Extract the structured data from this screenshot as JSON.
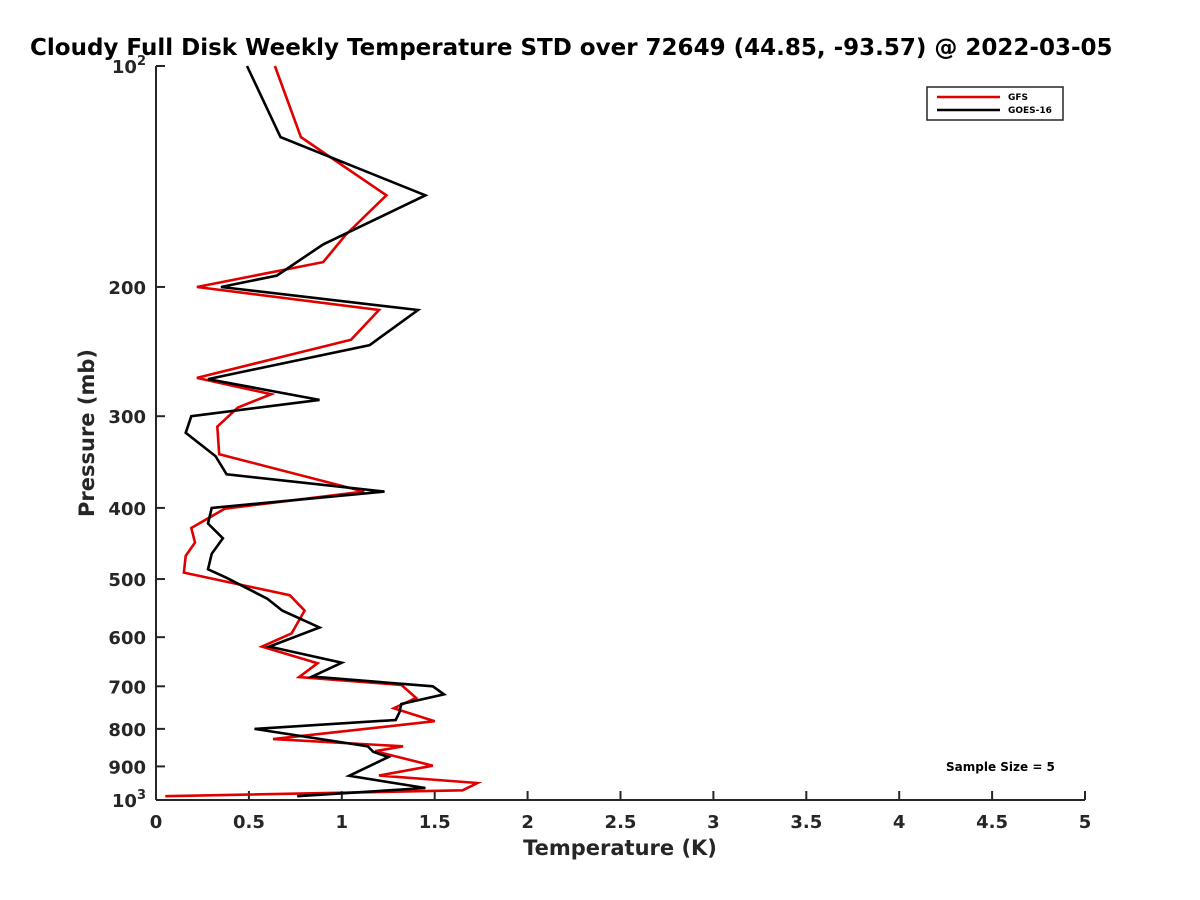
{
  "chart_data": {
    "type": "line",
    "title": "Cloudy Full Disk Weekly Temperature STD over 72649 (44.85, -93.57) @ 2022-03-05",
    "xlabel": "Temperature (K)",
    "ylabel": "Pressure (mb)",
    "xlim": [
      0,
      5
    ],
    "ylim": [
      100,
      1000
    ],
    "y_scale": "log",
    "y_reversed": true,
    "grid": false,
    "x_ticks": [
      "0",
      "0.5",
      "1",
      "1.5",
      "2",
      "2.5",
      "3",
      "3.5",
      "4",
      "4.5",
      "5"
    ],
    "y_ticks": [
      {
        "value": 100,
        "base": "10",
        "exp": "2"
      },
      {
        "value": 200,
        "label": "200"
      },
      {
        "value": 300,
        "label": "300"
      },
      {
        "value": 400,
        "label": "400"
      },
      {
        "value": 500,
        "label": "500"
      },
      {
        "value": 600,
        "label": "600"
      },
      {
        "value": 700,
        "label": "700"
      },
      {
        "value": 800,
        "label": "800"
      },
      {
        "value": 900,
        "label": "900"
      },
      {
        "value": 1000,
        "base": "10",
        "exp": "3"
      }
    ],
    "legend": {
      "position": "top-right",
      "entries": [
        "GFS",
        "GOES-16"
      ]
    },
    "annotation": "Sample Size = 5",
    "series": [
      {
        "name": "GFS",
        "color": "#e00000",
        "points": [
          [
            0.64,
            100
          ],
          [
            0.78,
            125
          ],
          [
            1.24,
            150
          ],
          [
            1.02,
            170
          ],
          [
            0.9,
            185
          ],
          [
            0.22,
            200
          ],
          [
            1.2,
            215
          ],
          [
            1.05,
            236
          ],
          [
            0.22,
            266
          ],
          [
            0.62,
            280
          ],
          [
            0.44,
            292
          ],
          [
            0.33,
            310
          ],
          [
            0.34,
            338
          ],
          [
            1.12,
            380
          ],
          [
            0.37,
            401
          ],
          [
            0.19,
            426
          ],
          [
            0.21,
            446
          ],
          [
            0.16,
            465
          ],
          [
            0.15,
            490
          ],
          [
            0.72,
            526
          ],
          [
            0.8,
            552
          ],
          [
            0.73,
            593
          ],
          [
            0.57,
            618
          ],
          [
            0.87,
            651
          ],
          [
            0.77,
            680
          ],
          [
            1.32,
            697
          ],
          [
            1.4,
            726
          ],
          [
            1.28,
            750
          ],
          [
            1.5,
            781
          ],
          [
            0.63,
            826
          ],
          [
            1.33,
            845
          ],
          [
            1.18,
            858
          ],
          [
            1.49,
            898
          ],
          [
            1.2,
            926
          ],
          [
            1.73,
            948
          ],
          [
            1.65,
            970
          ],
          [
            0.05,
            988
          ]
        ]
      },
      {
        "name": "GOES-16",
        "color": "#000000",
        "points": [
          [
            0.49,
            100
          ],
          [
            0.67,
            125
          ],
          [
            1.45,
            150
          ],
          [
            0.9,
            175
          ],
          [
            0.65,
            193
          ],
          [
            0.35,
            200
          ],
          [
            1.41,
            215
          ],
          [
            1.15,
            240
          ],
          [
            0.28,
            267
          ],
          [
            0.88,
            285
          ],
          [
            0.19,
            300
          ],
          [
            0.16,
            316
          ],
          [
            0.32,
            340
          ],
          [
            0.38,
            360
          ],
          [
            1.23,
            380
          ],
          [
            0.3,
            400
          ],
          [
            0.28,
            420
          ],
          [
            0.36,
            440
          ],
          [
            0.3,
            462
          ],
          [
            0.28,
            485
          ],
          [
            0.38,
            498
          ],
          [
            0.6,
            532
          ],
          [
            0.68,
            552
          ],
          [
            0.88,
            582
          ],
          [
            0.61,
            618
          ],
          [
            1.0,
            650
          ],
          [
            0.84,
            679
          ],
          [
            1.49,
            700
          ],
          [
            1.55,
            718
          ],
          [
            1.32,
            740
          ],
          [
            1.31,
            760
          ],
          [
            1.29,
            778
          ],
          [
            0.53,
            800
          ],
          [
            1.14,
            845
          ],
          [
            1.17,
            860
          ],
          [
            1.25,
            874
          ],
          [
            1.04,
            927
          ],
          [
            1.45,
            963
          ],
          [
            0.76,
            988
          ]
        ]
      }
    ]
  }
}
